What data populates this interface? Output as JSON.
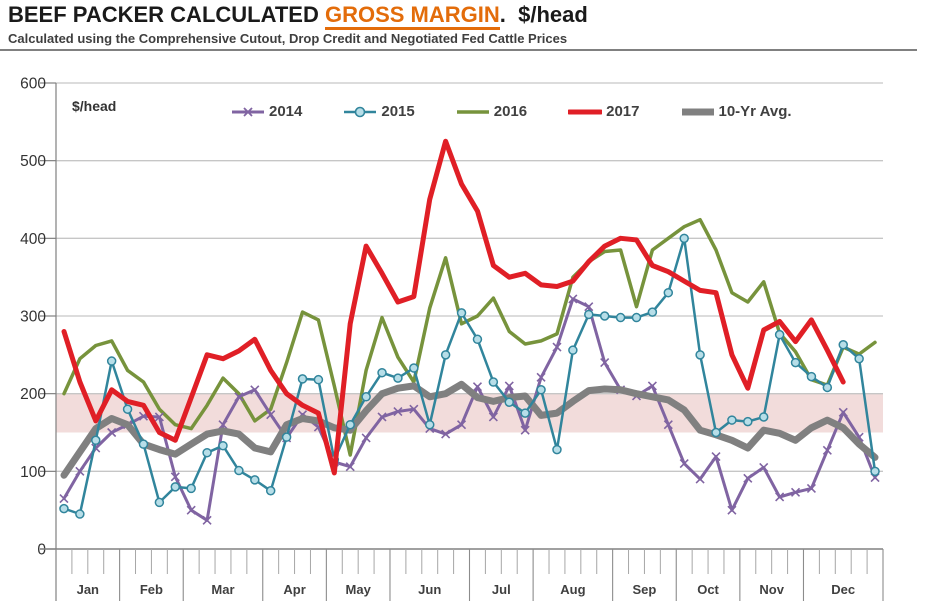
{
  "header": {
    "title_prefix": "BEEF PACKER CALCULATED ",
    "title_highlight": "GROSS MARGIN",
    "title_suffix": ".  $/head",
    "subtitle": "Calculated using the Comprehensive Cutout, Drop Credit and Negotiated Fed Cattle Prices",
    "highlight_color": "#E36C0A"
  },
  "chart_data": {
    "type": "line",
    "title": "Beef Packer Calculated Gross Margin, $/head, weekly by month",
    "ylabel": "$/head",
    "ylim": [
      0,
      600
    ],
    "yticks": [
      0,
      100,
      200,
      300,
      400,
      500,
      600
    ],
    "grid": true,
    "legend_position": "top",
    "categories": [
      "Jan",
      "Feb",
      "Mar",
      "Apr",
      "May",
      "Jun",
      "Jul",
      "Aug",
      "Sep",
      "Oct",
      "Nov",
      "Dec"
    ],
    "month_week_counts": [
      4,
      4,
      5,
      4,
      4,
      5,
      4,
      5,
      4,
      4,
      4,
      5
    ],
    "band": {
      "from": 150,
      "to": 200,
      "color": "#F2DCDB"
    },
    "axis_color": "#808080",
    "grid_color": "#C6C6C6",
    "tick_label_color": "#404040",
    "series": [
      {
        "name": "2014",
        "color": "#8064A2",
        "marker": "x",
        "width": 3,
        "values": [
          65,
          100,
          130,
          150,
          160,
          171,
          170,
          93,
          50,
          37,
          160,
          196,
          205,
          173,
          143,
          173,
          157,
          112,
          106,
          143,
          170,
          177,
          180,
          155,
          148,
          160,
          209,
          170,
          210,
          153,
          221,
          260,
          322,
          312,
          240,
          205,
          197,
          210,
          160,
          110,
          90,
          119,
          50,
          91,
          105,
          67,
          73,
          78,
          127,
          176,
          144,
          92
        ]
      },
      {
        "name": "2015",
        "color": "#31859C",
        "marker": "circle",
        "marker_fill": "#B7DEE8",
        "width": 2.5,
        "values": [
          52,
          45,
          140,
          242,
          180,
          135,
          60,
          80,
          78,
          124,
          133,
          101,
          89,
          75,
          144,
          219,
          218,
          115,
          160,
          196,
          227,
          220,
          233,
          160,
          250,
          304,
          270,
          215,
          189,
          175,
          205,
          128,
          256,
          302,
          300,
          298,
          298,
          305,
          330,
          400,
          250,
          150,
          166,
          164,
          170,
          276,
          240,
          222,
          208,
          263,
          245,
          100
        ]
      },
      {
        "name": "2016",
        "color": "#77933C",
        "marker": "none",
        "width": 3.5,
        "values": [
          200,
          245,
          262,
          268,
          230,
          215,
          180,
          160,
          155,
          185,
          220,
          200,
          165,
          180,
          240,
          305,
          295,
          210,
          121,
          230,
          298,
          247,
          215,
          310,
          375,
          290,
          300,
          323,
          280,
          264,
          268,
          277,
          350,
          370,
          383,
          385,
          312,
          385,
          400,
          415,
          424,
          385,
          330,
          318,
          344,
          278,
          254,
          218,
          211,
          260,
          251,
          266
        ]
      },
      {
        "name": "2017",
        "color": "#E01F26",
        "marker": "none",
        "width": 5,
        "values": [
          280,
          215,
          165,
          205,
          190,
          185,
          150,
          140,
          195,
          250,
          245,
          255,
          270,
          230,
          200,
          185,
          175,
          98,
          290,
          390,
          355,
          318,
          325,
          450,
          525,
          470,
          435,
          365,
          350,
          355,
          340,
          338,
          345,
          370,
          390,
          400,
          398,
          365,
          357,
          345,
          333,
          330,
          250,
          207,
          282,
          293,
          267,
          295,
          256,
          215
        ]
      },
      {
        "name": "10-Yr Avg.",
        "color": "#808080",
        "marker": "none",
        "width": 7,
        "values": [
          95,
          125,
          155,
          168,
          160,
          135,
          128,
          122,
          135,
          148,
          152,
          148,
          130,
          125,
          160,
          168,
          165,
          156,
          153,
          178,
          200,
          207,
          210,
          196,
          200,
          212,
          195,
          190,
          195,
          197,
          172,
          175,
          190,
          204,
          206,
          205,
          200,
          196,
          192,
          179,
          153,
          147,
          140,
          130,
          153,
          149,
          140,
          156,
          166,
          156,
          135,
          118
        ]
      }
    ]
  }
}
